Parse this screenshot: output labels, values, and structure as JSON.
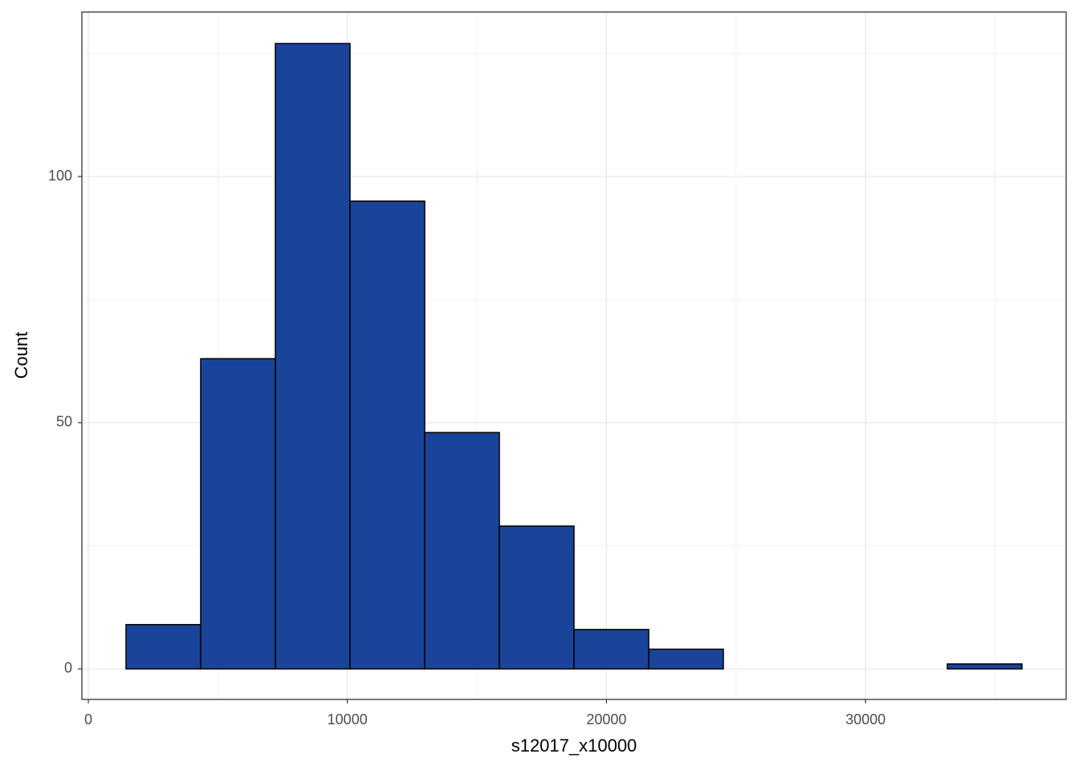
{
  "chart_data": {
    "type": "histogram",
    "x_label": "s12017_x10000",
    "y_label": "Count",
    "bins": [
      1456,
      4338,
      7220,
      10102,
      12984,
      15866,
      18748,
      21630,
      24512,
      27394,
      30276,
      33158,
      36040
    ],
    "counts": [
      9,
      63,
      127,
      95,
      48,
      29,
      8,
      4,
      0,
      0,
      0,
      1
    ],
    "color": "#1a4499",
    "edge_color": "#000000",
    "xlim": [
      -248,
      37744
    ],
    "ylim": [
      -6.2,
      133.4
    ],
    "xticks": [
      0,
      10000,
      20000,
      30000
    ],
    "yticks": [
      0,
      50,
      100
    ],
    "x_minor_ticks": [
      5000,
      15000,
      25000,
      35000
    ],
    "y_minor_ticks": [
      25,
      75,
      125
    ],
    "grid": true
  }
}
